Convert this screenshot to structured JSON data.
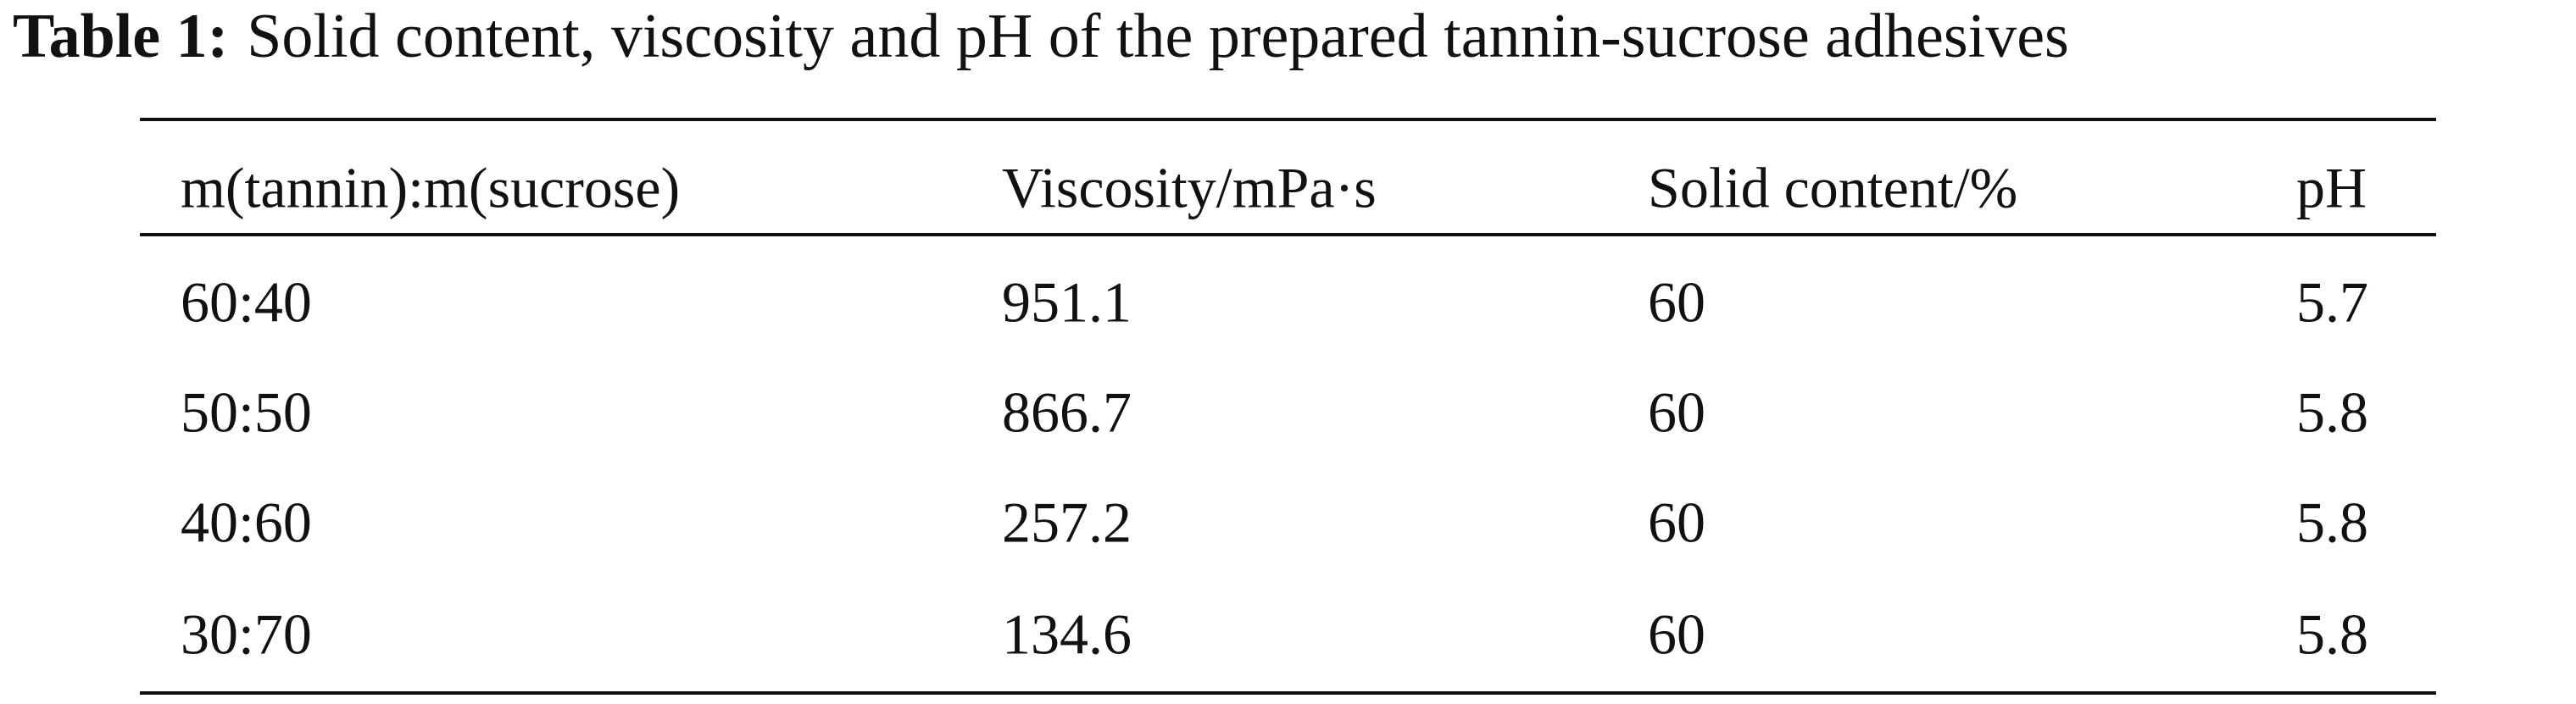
{
  "table": {
    "label": "Table 1:",
    "title": "Solid content, viscosity and pH of the prepared tannin-sucrose adhesives",
    "header": [
      "m(tannin):m(sucrose)",
      "Viscosity/mPa·s",
      "Solid content/%",
      "pH"
    ],
    "rows": [
      [
        "60:40",
        "951.1",
        "60",
        "5.7"
      ],
      [
        "50:50",
        "866.7",
        "60",
        "5.8"
      ],
      [
        "40:60",
        "257.2",
        "60",
        "5.8"
      ],
      [
        "30:70",
        "134.6",
        "60",
        "5.8"
      ]
    ]
  }
}
